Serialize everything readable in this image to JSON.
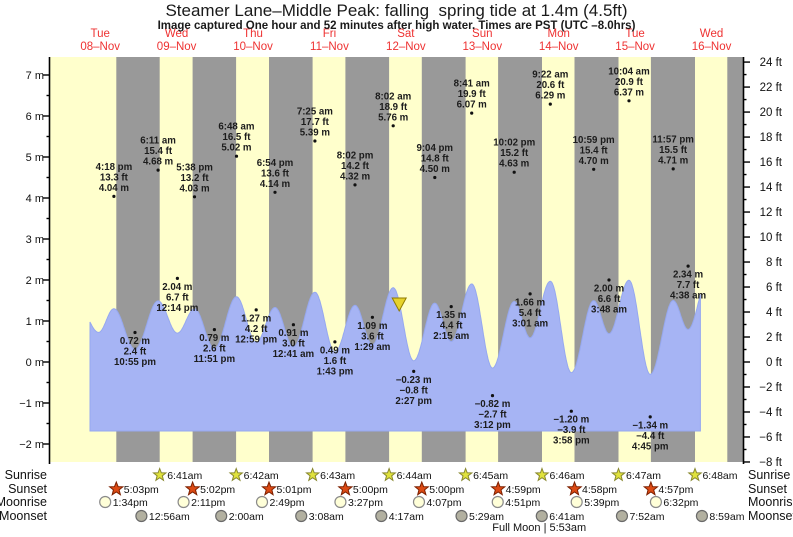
{
  "header": {
    "title": "Steamer Lane–Middle Peak: falling  spring tide at 1.4m (4.5ft)",
    "subtitle": "Image captured One hour and 52 minutes after high water. Times are PST (UTC –8.0hrs)"
  },
  "colors": {
    "day_band": "#ffffcc",
    "night_band": "#999999",
    "water": "#a6b4f4",
    "water_edge": "#96a8ef",
    "date_red": "#ee3232",
    "annotation": "#1c1c1c",
    "axis": "#000000",
    "marker_fill": "#e6d22c",
    "marker_stroke": "#8f7a00",
    "sunrise_fill": "#e0e23c",
    "sunrise_stroke": "#88882e",
    "sunset_fill": "#dc4a14",
    "sunset_stroke": "#7c2000",
    "moonrise_fill": "#ffffd8",
    "moonrise_stroke": "#8a8a8a",
    "moonset_fill": "#b2b0a0",
    "moonset_stroke": "#6a6a6a"
  },
  "chart_data": {
    "type": "area",
    "title": "Steamer Lane–Middle Peak: falling  spring tide at 1.4m (4.5ft)",
    "x_axis": {
      "days": [
        {
          "name": "Tue",
          "date": "08–Nov"
        },
        {
          "name": "Wed",
          "date": "09–Nov"
        },
        {
          "name": "Thu",
          "date": "10–Nov"
        },
        {
          "name": "Fri",
          "date": "11–Nov"
        },
        {
          "name": "Sat",
          "date": "12–Nov"
        },
        {
          "name": "Sun",
          "date": "13–Nov"
        },
        {
          "name": "Mon",
          "date": "14–Nov"
        },
        {
          "name": "Tue",
          "date": "15–Nov"
        },
        {
          "name": "Wed",
          "date": "16–Nov"
        }
      ]
    },
    "y_axis_left": {
      "unit": "m",
      "min": -2,
      "max": 7,
      "major_step": 1,
      "minor_step": 0.5
    },
    "y_axis_right": {
      "unit": "ft",
      "min": -8,
      "max": 24,
      "major_step": 2,
      "minor_step": 1
    },
    "tide_events": [
      {
        "t": 16.3,
        "value_m": 4.04,
        "type": "high",
        "time": "4:18 pm",
        "ft": "13.3 ft",
        "m": "4.04 m"
      },
      {
        "t": 22.92,
        "value_m": 0.72,
        "type": "low",
        "time": "10:55 pm",
        "ft": "2.4 ft",
        "m": "0.72 m"
      },
      {
        "t": 30.18,
        "value_m": 4.68,
        "type": "high",
        "time": "6:11 am",
        "ft": "15.4 ft",
        "m": "4.68 m"
      },
      {
        "t": 36.23,
        "value_m": 2.04,
        "type": "low",
        "time": "12:14 pm",
        "ft": "6.7 ft",
        "m": "2.04 m"
      },
      {
        "t": 41.63,
        "value_m": 4.03,
        "type": "high",
        "time": "5:38 pm",
        "ft": "13.2 ft",
        "m": "4.03 m"
      },
      {
        "t": 47.85,
        "value_m": 0.79,
        "type": "low",
        "time": "11:51 pm",
        "ft": "2.6 ft",
        "m": "0.79 m"
      },
      {
        "t": 54.8,
        "value_m": 5.02,
        "type": "high",
        "time": "6:48 am",
        "ft": "16.5 ft",
        "m": "5.02 m"
      },
      {
        "t": 60.98,
        "value_m": 1.27,
        "type": "low",
        "time": "12:59 pm",
        "ft": "4.2 ft",
        "m": "1.27 m"
      },
      {
        "t": 66.9,
        "value_m": 4.14,
        "type": "high",
        "time": "6:54 pm",
        "ft": "13.6 ft",
        "m": "4.14 m"
      },
      {
        "t": 72.68,
        "value_m": 0.91,
        "type": "low",
        "time": "12:41 am",
        "ft": "3.0 ft",
        "m": "0.91 m"
      },
      {
        "t": 79.42,
        "value_m": 5.39,
        "type": "high",
        "time": "7:25 am",
        "ft": "17.7 ft",
        "m": "5.39 m"
      },
      {
        "t": 85.72,
        "value_m": 0.49,
        "type": "low",
        "time": "1:43 pm",
        "ft": "1.6 ft",
        "m": "0.49 m"
      },
      {
        "t": 92.03,
        "value_m": 4.32,
        "type": "high",
        "time": "8:02 pm",
        "ft": "14.2 ft",
        "m": "4.32 m"
      },
      {
        "t": 97.48,
        "value_m": 1.09,
        "type": "low",
        "time": "1:29 am",
        "ft": "3.6 ft",
        "m": "1.09 m"
      },
      {
        "t": 104.03,
        "value_m": 5.76,
        "type": "high",
        "time": "8:02 am",
        "ft": "18.9 ft",
        "m": "5.76 m"
      },
      {
        "t": 110.45,
        "value_m": -0.23,
        "type": "low",
        "time": "2:27 pm",
        "ft": "−0.8 ft",
        "m": "−0.23 m"
      },
      {
        "t": 117.07,
        "value_m": 4.5,
        "type": "high",
        "time": "9:04 pm",
        "ft": "14.8 ft",
        "m": "4.50 m"
      },
      {
        "t": 122.25,
        "value_m": 1.35,
        "type": "low",
        "time": "2:15 am",
        "ft": "4.4 ft",
        "m": "1.35 m"
      },
      {
        "t": 128.68,
        "value_m": 6.07,
        "type": "high",
        "time": "8:41 am",
        "ft": "19.9 ft",
        "m": "6.07 m"
      },
      {
        "t": 135.2,
        "value_m": -0.82,
        "type": "low",
        "time": "3:12 pm",
        "ft": "−2.7 ft",
        "m": "−0.82 m"
      },
      {
        "t": 142.03,
        "value_m": 4.63,
        "type": "high",
        "time": "10:02 pm",
        "ft": "15.2 ft",
        "m": "4.63 m"
      },
      {
        "t": 147.02,
        "value_m": 1.66,
        "type": "low",
        "time": "3:01 am",
        "ft": "5.4 ft",
        "m": "1.66 m"
      },
      {
        "t": 153.37,
        "value_m": 6.29,
        "type": "high",
        "time": "9:22 am",
        "ft": "20.6 ft",
        "m": "6.29 m"
      },
      {
        "t": 159.97,
        "value_m": -1.2,
        "type": "low",
        "time": "3:58 pm",
        "ft": "−3.9 ft",
        "m": "−1.20 m"
      },
      {
        "t": 166.98,
        "value_m": 4.7,
        "type": "high",
        "time": "10:59 pm",
        "ft": "15.4 ft",
        "m": "4.70 m"
      },
      {
        "t": 171.8,
        "value_m": 2.0,
        "type": "low",
        "time": "3:48 am",
        "ft": "6.6 ft",
        "m": "2.00 m"
      },
      {
        "t": 178.07,
        "value_m": 6.37,
        "type": "high",
        "time": "10:04 am",
        "ft": "20.9 ft",
        "m": "6.37 m"
      },
      {
        "t": 184.75,
        "value_m": -1.34,
        "type": "low",
        "time": "4:45 pm",
        "ft": "−4.4 ft",
        "m": "−1.34 m"
      },
      {
        "t": 191.95,
        "value_m": 4.71,
        "type": "high",
        "time": "11:57 pm",
        "ft": "15.5 ft",
        "m": "4.71 m"
      },
      {
        "t": 196.63,
        "value_m": 2.34,
        "type": "low",
        "time": "4:38 am",
        "ft": "7.7 ft",
        "m": "2.34 m"
      }
    ],
    "shape_helpers": [
      {
        "t": 5.0,
        "value_m": 4.4
      },
      {
        "t": 11.5,
        "value_m": 2.1
      },
      {
        "t": 202.8,
        "value_m": 6.45
      }
    ],
    "water_start_t": 8.79,
    "water_end_t": 200.5,
    "night_bands": [
      [
        17.05,
        30.68
      ],
      [
        41.03,
        54.7
      ],
      [
        65.02,
        78.72
      ],
      [
        89.0,
        102.73
      ],
      [
        113.0,
        126.75
      ],
      [
        136.98,
        150.77
      ],
      [
        160.97,
        174.78
      ],
      [
        184.95,
        198.8
      ],
      [
        208.95,
        213.9
      ]
    ],
    "current_time_marker": {
      "t": 105.9
    }
  },
  "astro": {
    "rows": [
      {
        "key": "sunrise",
        "label": "Sunrise",
        "icon": "sunrise-icon",
        "entries": [
          {
            "time": "6:41am",
            "t": 30.683
          },
          {
            "time": "6:42am",
            "t": 54.7
          },
          {
            "time": "6:43am",
            "t": 78.717
          },
          {
            "time": "6:44am",
            "t": 102.733
          },
          {
            "time": "6:45am",
            "t": 126.75
          },
          {
            "time": "6:46am",
            "t": 150.767
          },
          {
            "time": "6:47am",
            "t": 174.783
          },
          {
            "time": "6:48am",
            "t": 198.8
          }
        ]
      },
      {
        "key": "sunset",
        "label": "Sunset",
        "icon": "sunset-icon",
        "entries": [
          {
            "time": "5:03pm",
            "t": 17.05
          },
          {
            "time": "5:02pm",
            "t": 41.033
          },
          {
            "time": "5:01pm",
            "t": 65.017
          },
          {
            "time": "5:00pm",
            "t": 89.0
          },
          {
            "time": "5:00pm",
            "t": 113.0
          },
          {
            "time": "4:59pm",
            "t": 136.983
          },
          {
            "time": "4:58pm",
            "t": 160.967
          },
          {
            "time": "4:57pm",
            "t": 184.95
          }
        ]
      },
      {
        "key": "moonrise",
        "label": "Moonrise",
        "icon": "moonrise-icon",
        "entries": [
          {
            "time": "1:34pm",
            "t": 13.567
          },
          {
            "time": "2:11pm",
            "t": 38.183
          },
          {
            "time": "2:49pm",
            "t": 62.817
          },
          {
            "time": "3:27pm",
            "t": 87.45
          },
          {
            "time": "4:07pm",
            "t": 112.117
          },
          {
            "time": "4:51pm",
            "t": 136.85
          },
          {
            "time": "5:39pm",
            "t": 161.65
          },
          {
            "time": "6:32pm",
            "t": 186.533
          }
        ]
      },
      {
        "key": "moonset",
        "label": "Moonset",
        "icon": "moonset-icon",
        "entries": [
          {
            "time": "12:56am",
            "t": 24.933
          },
          {
            "time": "2:00am",
            "t": 50.0
          },
          {
            "time": "3:08am",
            "t": 75.133
          },
          {
            "time": "4:17am",
            "t": 100.283
          },
          {
            "time": "5:29am",
            "t": 125.483
          },
          {
            "time": "6:41am",
            "t": 150.683
          },
          {
            "time": "7:52am",
            "t": 175.867
          },
          {
            "time": "8:59am",
            "t": 200.983
          }
        ]
      }
    ],
    "full_moon": {
      "label": "Full Moon | 5:53am",
      "t": 149.883
    }
  }
}
